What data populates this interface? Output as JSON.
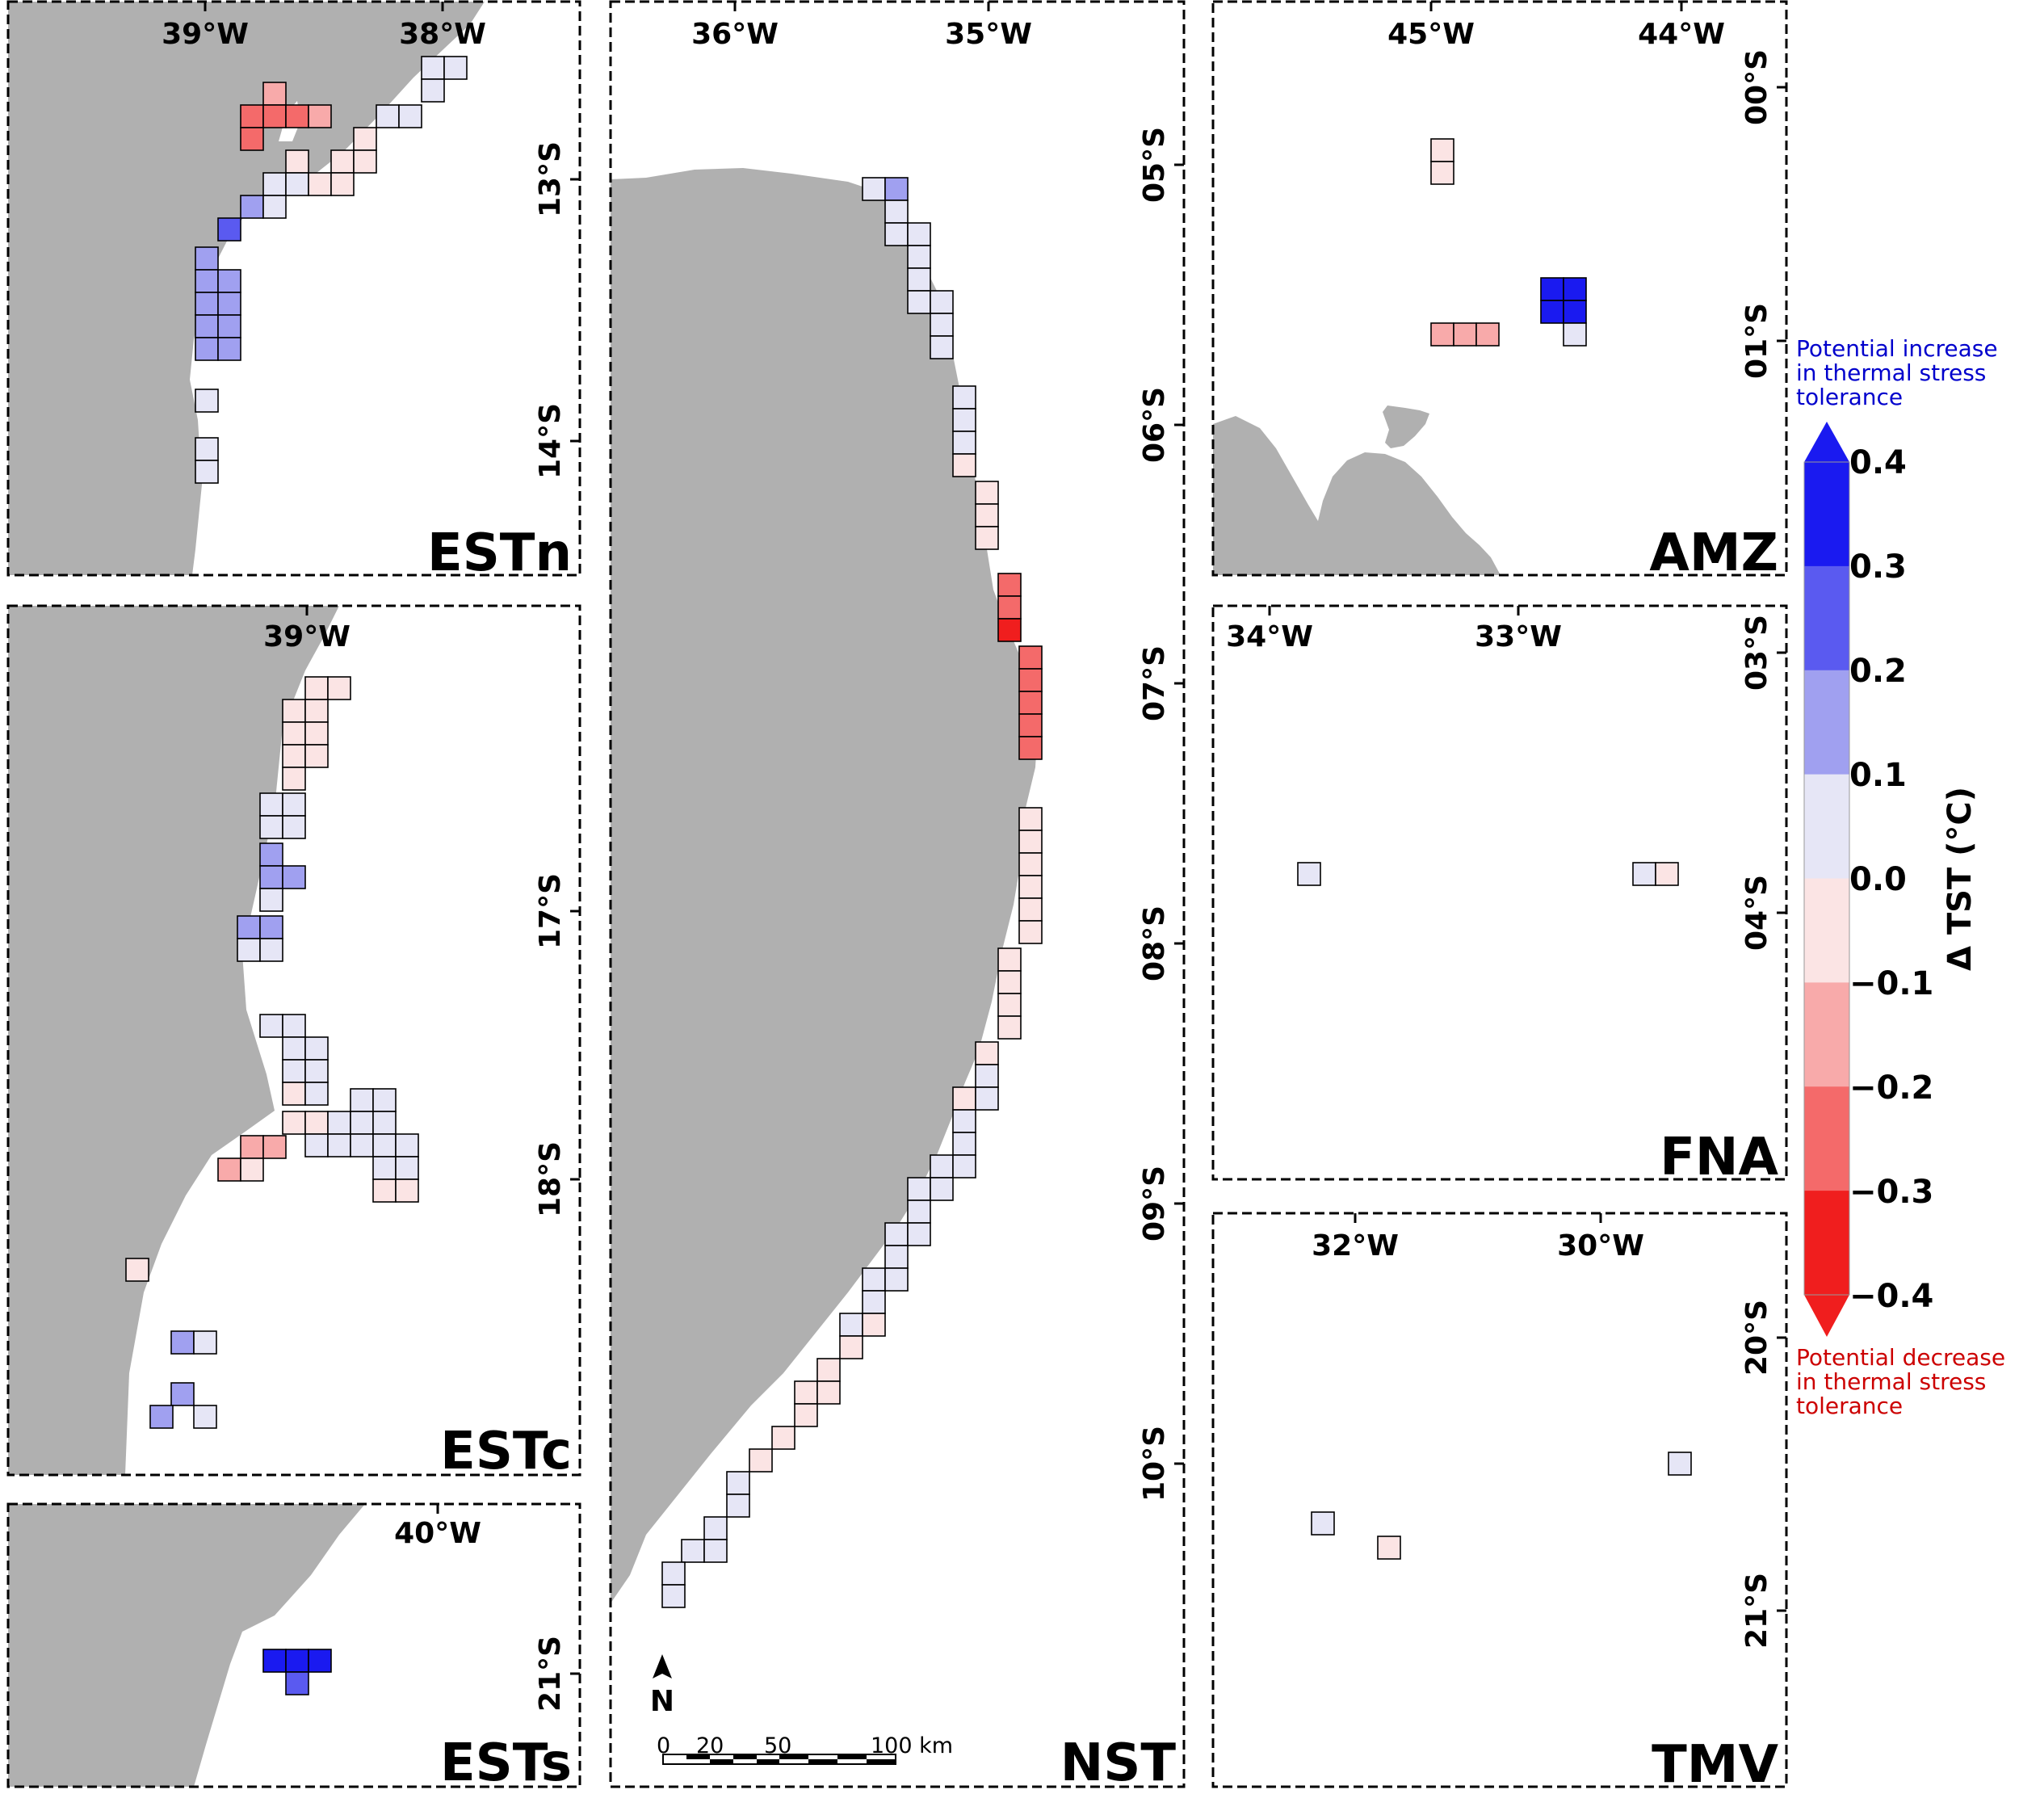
{
  "panels": [
    {
      "id": "ESTn",
      "name": "ESTn",
      "x_ticks": [
        "39°W",
        "38°W"
      ],
      "y_ticks": [
        "13°S",
        "14°S"
      ]
    },
    {
      "id": "ESTc",
      "name": "ESTc",
      "x_ticks": [
        "39°W"
      ],
      "y_ticks": [
        "17°S",
        "18°S"
      ]
    },
    {
      "id": "ESTs",
      "name": "ESTs",
      "x_ticks": [
        "40°W"
      ],
      "y_ticks": [
        "21°S"
      ]
    },
    {
      "id": "NST",
      "name": "NST",
      "x_ticks": [
        "36°W",
        "35°W"
      ],
      "y_ticks": [
        "05°S",
        "06°S",
        "07°S",
        "08°S",
        "09°S",
        "10°S"
      ]
    },
    {
      "id": "AMZ",
      "name": "AMZ",
      "x_ticks": [
        "45°W",
        "44°W"
      ],
      "y_ticks": [
        "00°S",
        "01°S"
      ]
    },
    {
      "id": "FNA",
      "name": "FNA",
      "x_ticks": [
        "34°W",
        "33°W"
      ],
      "y_ticks": [
        "03°S",
        "04°S"
      ]
    },
    {
      "id": "TMV",
      "name": "TMV",
      "x_ticks": [
        "32°W",
        "30°W"
      ],
      "y_ticks": [
        "20°S",
        "21°S"
      ]
    }
  ],
  "north_arrow": {
    "label": "N"
  },
  "scale_bar": {
    "labels": [
      "0",
      "20",
      "50",
      "100 km"
    ]
  },
  "legend": {
    "title": "Δ TST (°C)",
    "tick_labels": [
      "0.4",
      "0.3",
      "0.2",
      "0.1",
      "0.0",
      "−0.1",
      "−0.2",
      "−0.3",
      "−0.4"
    ],
    "bins": [
      {
        "range": [
          0.3,
          0.4
        ],
        "color": "#1a1af0"
      },
      {
        "range": [
          0.2,
          0.3
        ],
        "color": "#5a5af0"
      },
      {
        "range": [
          0.1,
          0.2
        ],
        "color": "#a0a0f0"
      },
      {
        "range": [
          0.0,
          0.1
        ],
        "color": "#e6e6f6"
      },
      {
        "range": [
          -0.1,
          0.0
        ],
        "color": "#fbe4e4"
      },
      {
        "range": [
          -0.2,
          -0.1
        ],
        "color": "#f8aaaa"
      },
      {
        "range": [
          -0.3,
          -0.2
        ],
        "color": "#f46a6a"
      },
      {
        "range": [
          -0.4,
          -0.3
        ],
        "color": "#f01e1e"
      }
    ],
    "increase_note": [
      "Potential increase",
      "in thermal stress",
      "tolerance"
    ],
    "decrease_note": [
      "Potential decrease",
      "in thermal stress",
      "tolerance"
    ],
    "increase_color": "#0000cc",
    "decrease_color": "#cc0000"
  },
  "land_color": "#b0b0b0"
}
